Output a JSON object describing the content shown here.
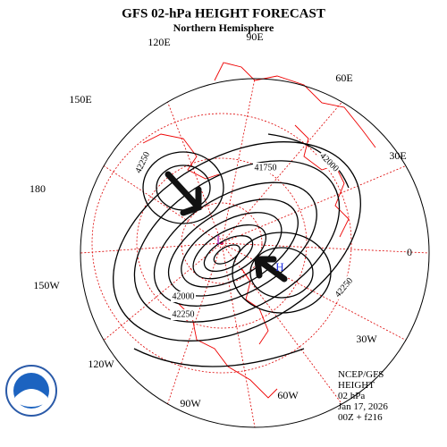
{
  "header": {
    "title": "GFS 02-hPa HEIGHT FORECAST",
    "subtitle": "Northern Hemisphere"
  },
  "longitude_labels": [
    "90E",
    "60E",
    "30E",
    "0",
    "30W",
    "60W",
    "90W",
    "120W",
    "150W",
    "180",
    "150E",
    "120E"
  ],
  "contour_labels": [
    41750,
    42000,
    42250,
    42250,
    42250,
    42000
  ],
  "pressure_centers": [
    "L",
    "H"
  ],
  "footer": [
    "NCEP/GFS",
    "HEIGHT",
    "02 hPa",
    "Jan 17, 2026",
    "00Z + f216"
  ]
}
